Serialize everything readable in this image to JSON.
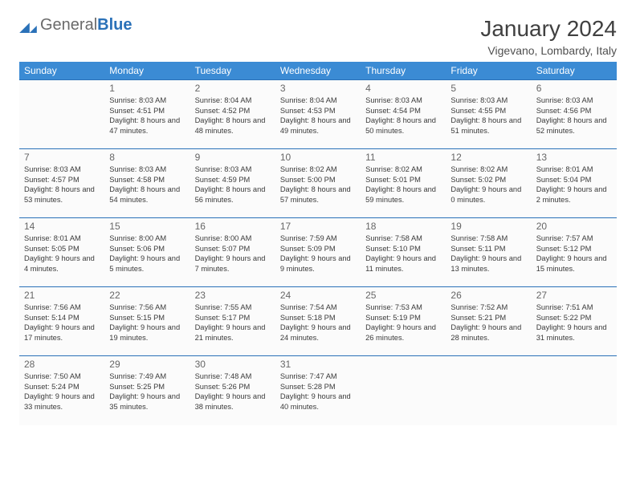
{
  "branding": {
    "word1": "General",
    "word2": "Blue",
    "mark_fill": "#2a71b8"
  },
  "title": "January 2024",
  "location": "Vigevano, Lombardy, Italy",
  "dayHeaders": [
    "Sunday",
    "Monday",
    "Tuesday",
    "Wednesday",
    "Thursday",
    "Friday",
    "Saturday"
  ],
  "weeks": [
    [
      null,
      {
        "n": "1",
        "sr": "8:03 AM",
        "ss": "4:51 PM",
        "dl": "8 hours and 47 minutes."
      },
      {
        "n": "2",
        "sr": "8:04 AM",
        "ss": "4:52 PM",
        "dl": "8 hours and 48 minutes."
      },
      {
        "n": "3",
        "sr": "8:04 AM",
        "ss": "4:53 PM",
        "dl": "8 hours and 49 minutes."
      },
      {
        "n": "4",
        "sr": "8:03 AM",
        "ss": "4:54 PM",
        "dl": "8 hours and 50 minutes."
      },
      {
        "n": "5",
        "sr": "8:03 AM",
        "ss": "4:55 PM",
        "dl": "8 hours and 51 minutes."
      },
      {
        "n": "6",
        "sr": "8:03 AM",
        "ss": "4:56 PM",
        "dl": "8 hours and 52 minutes."
      }
    ],
    [
      {
        "n": "7",
        "sr": "8:03 AM",
        "ss": "4:57 PM",
        "dl": "8 hours and 53 minutes."
      },
      {
        "n": "8",
        "sr": "8:03 AM",
        "ss": "4:58 PM",
        "dl": "8 hours and 54 minutes."
      },
      {
        "n": "9",
        "sr": "8:03 AM",
        "ss": "4:59 PM",
        "dl": "8 hours and 56 minutes."
      },
      {
        "n": "10",
        "sr": "8:02 AM",
        "ss": "5:00 PM",
        "dl": "8 hours and 57 minutes."
      },
      {
        "n": "11",
        "sr": "8:02 AM",
        "ss": "5:01 PM",
        "dl": "8 hours and 59 minutes."
      },
      {
        "n": "12",
        "sr": "8:02 AM",
        "ss": "5:02 PM",
        "dl": "9 hours and 0 minutes."
      },
      {
        "n": "13",
        "sr": "8:01 AM",
        "ss": "5:04 PM",
        "dl": "9 hours and 2 minutes."
      }
    ],
    [
      {
        "n": "14",
        "sr": "8:01 AM",
        "ss": "5:05 PM",
        "dl": "9 hours and 4 minutes."
      },
      {
        "n": "15",
        "sr": "8:00 AM",
        "ss": "5:06 PM",
        "dl": "9 hours and 5 minutes."
      },
      {
        "n": "16",
        "sr": "8:00 AM",
        "ss": "5:07 PM",
        "dl": "9 hours and 7 minutes."
      },
      {
        "n": "17",
        "sr": "7:59 AM",
        "ss": "5:09 PM",
        "dl": "9 hours and 9 minutes."
      },
      {
        "n": "18",
        "sr": "7:58 AM",
        "ss": "5:10 PM",
        "dl": "9 hours and 11 minutes."
      },
      {
        "n": "19",
        "sr": "7:58 AM",
        "ss": "5:11 PM",
        "dl": "9 hours and 13 minutes."
      },
      {
        "n": "20",
        "sr": "7:57 AM",
        "ss": "5:12 PM",
        "dl": "9 hours and 15 minutes."
      }
    ],
    [
      {
        "n": "21",
        "sr": "7:56 AM",
        "ss": "5:14 PM",
        "dl": "9 hours and 17 minutes."
      },
      {
        "n": "22",
        "sr": "7:56 AM",
        "ss": "5:15 PM",
        "dl": "9 hours and 19 minutes."
      },
      {
        "n": "23",
        "sr": "7:55 AM",
        "ss": "5:17 PM",
        "dl": "9 hours and 21 minutes."
      },
      {
        "n": "24",
        "sr": "7:54 AM",
        "ss": "5:18 PM",
        "dl": "9 hours and 24 minutes."
      },
      {
        "n": "25",
        "sr": "7:53 AM",
        "ss": "5:19 PM",
        "dl": "9 hours and 26 minutes."
      },
      {
        "n": "26",
        "sr": "7:52 AM",
        "ss": "5:21 PM",
        "dl": "9 hours and 28 minutes."
      },
      {
        "n": "27",
        "sr": "7:51 AM",
        "ss": "5:22 PM",
        "dl": "9 hours and 31 minutes."
      }
    ],
    [
      {
        "n": "28",
        "sr": "7:50 AM",
        "ss": "5:24 PM",
        "dl": "9 hours and 33 minutes."
      },
      {
        "n": "29",
        "sr": "7:49 AM",
        "ss": "5:25 PM",
        "dl": "9 hours and 35 minutes."
      },
      {
        "n": "30",
        "sr": "7:48 AM",
        "ss": "5:26 PM",
        "dl": "9 hours and 38 minutes."
      },
      {
        "n": "31",
        "sr": "7:47 AM",
        "ss": "5:28 PM",
        "dl": "9 hours and 40 minutes."
      },
      null,
      null,
      null
    ]
  ],
  "labels": {
    "sunrise": "Sunrise: ",
    "sunset": "Sunset: ",
    "daylight": "Daylight: "
  },
  "style": {
    "header_bg": "#3b8bd4",
    "border_color": "#2a71b8",
    "text_color": "#3a3a3a",
    "cell_bg": "#fbfbfb",
    "font_family": "Arial"
  }
}
